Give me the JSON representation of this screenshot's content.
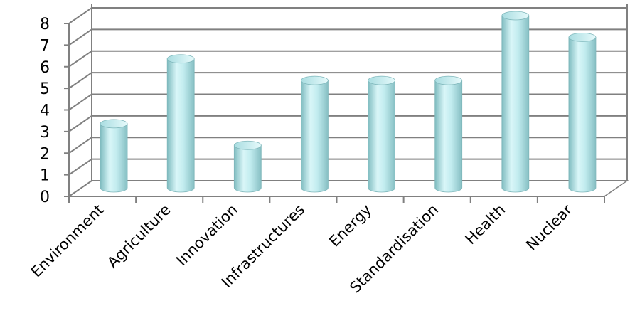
{
  "chart_data": {
    "type": "bar",
    "style": "3d-cylinder",
    "categories": [
      "Environment",
      "Agriculture",
      "Innovation",
      "Infrastructures",
      "Energy",
      "Standardisation",
      "Health",
      "Nuclear"
    ],
    "values": [
      3,
      6,
      2,
      5,
      5,
      5,
      8,
      7
    ],
    "title": "",
    "xlabel": "",
    "ylabel": "",
    "ylim": [
      0,
      8
    ],
    "yticks": [
      0,
      1,
      2,
      3,
      4,
      5,
      6,
      7,
      8
    ],
    "grid": true,
    "legend": "none",
    "colors": {
      "bar": "#bfe9ec",
      "bar_edge": "#7fb7bb",
      "grid": "#808080",
      "wall": "#ffffff",
      "floor": "#ffffff"
    }
  }
}
